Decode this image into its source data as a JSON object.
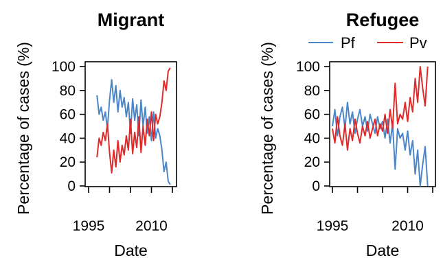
{
  "chart_data": [
    {
      "type": "line",
      "title": "Migrant",
      "xlabel": "Date",
      "ylabel": "Percentage of cases (%)",
      "xlim": [
        1990,
        2015
      ],
      "ylim": [
        0,
        100
      ],
      "xticks": [
        1995,
        2000,
        2005,
        2010,
        2015
      ],
      "xtick_labels": [
        "1995",
        "",
        "",
        "2010",
        ""
      ],
      "yticks": [
        0,
        20,
        40,
        60,
        80,
        100
      ],
      "colors": {
        "Pf": "#4a86c8",
        "Pv": "#e02a2a"
      },
      "series": [
        {
          "name": "Pf",
          "x": [
            1997.0,
            1997.5,
            1998.0,
            1998.5,
            1999.0,
            1999.5,
            2000.0,
            2000.5,
            2001.0,
            2001.5,
            2002.0,
            2002.5,
            2003.0,
            2003.5,
            2004.0,
            2004.5,
            2005.0,
            2005.5,
            2006.0,
            2006.5,
            2007.0,
            2007.5,
            2008.0,
            2008.5,
            2009.0,
            2009.5,
            2010.0,
            2010.5,
            2011.0,
            2011.5,
            2012.0,
            2012.5,
            2013.0,
            2013.5,
            2014.0,
            2014.5
          ],
          "values": [
            76,
            60,
            66,
            55,
            62,
            48,
            72,
            89,
            70,
            84,
            62,
            80,
            66,
            74,
            58,
            70,
            44,
            73,
            55,
            68,
            42,
            72,
            50,
            66,
            44,
            58,
            38,
            62,
            40,
            48,
            42,
            30,
            12,
            20,
            4,
            1
          ]
        },
        {
          "name": "Pv",
          "x": [
            1997.0,
            1997.5,
            1998.0,
            1998.5,
            1999.0,
            1999.5,
            2000.0,
            2000.5,
            2001.0,
            2001.5,
            2002.0,
            2002.5,
            2003.0,
            2003.5,
            2004.0,
            2004.5,
            2005.0,
            2005.5,
            2006.0,
            2006.5,
            2007.0,
            2007.5,
            2008.0,
            2008.5,
            2009.0,
            2009.5,
            2010.0,
            2010.5,
            2011.0,
            2011.5,
            2012.0,
            2012.5,
            2013.0,
            2013.5,
            2014.0,
            2014.5
          ],
          "values": [
            24,
            40,
            34,
            45,
            38,
            52,
            28,
            11,
            30,
            16,
            38,
            20,
            34,
            26,
            42,
            30,
            56,
            27,
            45,
            32,
            58,
            28,
            50,
            34,
            56,
            42,
            62,
            38,
            60,
            52,
            58,
            70,
            88,
            80,
            96,
            99
          ]
        }
      ]
    },
    {
      "type": "line",
      "title": "Refugee",
      "xlabel": "Date",
      "ylabel": "Percentage of cases (%)",
      "xlim": [
        1992,
        2015
      ],
      "ylim": [
        0,
        100
      ],
      "xticks": [
        1995,
        2000,
        2005,
        2010,
        2015
      ],
      "xtick_labels": [
        "1995",
        "",
        "",
        "2010",
        ""
      ],
      "yticks": [
        0,
        20,
        40,
        60,
        80,
        100
      ],
      "legend": {
        "position": "top",
        "entries": [
          "Pf",
          "Pv"
        ]
      },
      "colors": {
        "Pf": "#4a86c8",
        "Pv": "#e02a2a"
      },
      "series": [
        {
          "name": "Pf",
          "x": [
            1995.0,
            1995.5,
            1996.0,
            1996.5,
            1997.0,
            1997.5,
            1998.0,
            1998.5,
            1999.0,
            1999.5,
            2000.0,
            2000.5,
            2001.0,
            2001.5,
            2002.0,
            2002.5,
            2003.0,
            2003.5,
            2004.0,
            2004.5,
            2005.0,
            2005.5,
            2006.0,
            2006.5,
            2007.0,
            2007.5,
            2008.0,
            2008.5,
            2009.0,
            2009.5,
            2010.0,
            2010.5,
            2011.0,
            2011.5,
            2012.0,
            2012.5,
            2013.0,
            2013.5,
            2014.0
          ],
          "values": [
            50,
            64,
            42,
            58,
            66,
            48,
            70,
            52,
            62,
            44,
            56,
            64,
            50,
            58,
            46,
            60,
            52,
            44,
            58,
            48,
            54,
            40,
            56,
            36,
            52,
            14,
            48,
            40,
            44,
            30,
            46,
            26,
            38,
            10,
            30,
            0,
            18,
            33,
            0
          ]
        },
        {
          "name": "Pv",
          "x": [
            1995.0,
            1995.5,
            1996.0,
            1996.5,
            1997.0,
            1997.5,
            1998.0,
            1998.5,
            1999.0,
            1999.5,
            2000.0,
            2000.5,
            2001.0,
            2001.5,
            2002.0,
            2002.5,
            2003.0,
            2003.5,
            2004.0,
            2004.5,
            2005.0,
            2005.5,
            2006.0,
            2006.5,
            2007.0,
            2007.5,
            2008.0,
            2008.5,
            2009.0,
            2009.5,
            2010.0,
            2010.5,
            2011.0,
            2011.5,
            2012.0,
            2012.5,
            2013.0,
            2013.5,
            2014.0
          ],
          "values": [
            48,
            36,
            58,
            42,
            34,
            52,
            30,
            48,
            38,
            56,
            44,
            36,
            50,
            42,
            54,
            40,
            48,
            56,
            42,
            52,
            46,
            60,
            44,
            64,
            48,
            86,
            52,
            60,
            56,
            70,
            54,
            74,
            62,
            90,
            70,
            100,
            82,
            67,
            100
          ]
        }
      ]
    }
  ]
}
